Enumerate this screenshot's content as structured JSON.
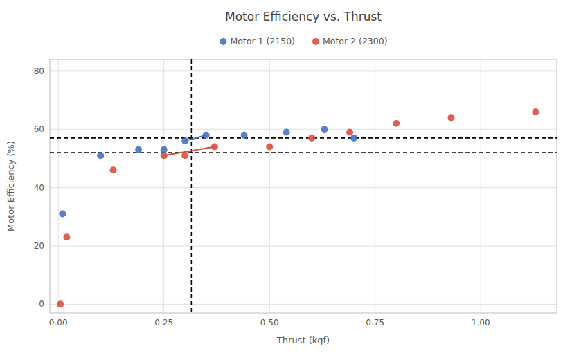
{
  "chart_data": {
    "type": "scatter",
    "title": "Motor Efficiency vs. Thrust",
    "x_label": "Thrust (kgf)",
    "y_label": "Motor Efficiency (%)",
    "series": [
      {
        "name": "Motor 1 (2150)",
        "color": "#4472C4",
        "x": [
          0.01,
          0.1,
          0.19,
          0.25,
          0.3,
          0.35,
          0.44,
          0.54,
          0.63,
          0.7
        ],
        "values": [
          31,
          51,
          53,
          53,
          56,
          58,
          58,
          59,
          60,
          57
        ]
      },
      {
        "name": "Motor 2 (2300)",
        "color": "#D94F3D",
        "x": [
          0.005,
          0.02,
          0.13,
          0.25,
          0.3,
          0.37,
          0.5,
          0.6,
          0.69,
          0.8,
          0.93,
          1.13
        ],
        "values": [
          0,
          23,
          46,
          51,
          51,
          54,
          54,
          57,
          59,
          62,
          64,
          66
        ]
      },
      {
        "type": "line",
        "color": "#4472C4",
        "x": [
          0.3,
          0.35
        ],
        "values": [
          56,
          58
        ]
      },
      {
        "type": "line",
        "color": "#D94F3D",
        "x": [
          0.25,
          0.37
        ],
        "values": [
          51,
          54
        ]
      }
    ],
    "hlines": [
      57,
      52
    ],
    "vlines": [
      0.315
    ],
    "xlim": [
      -0.02,
      1.18
    ],
    "ylim": [
      -3,
      84
    ],
    "xticks": [
      {
        "value": 0,
        "label": "0.00"
      },
      0.25,
      {
        "value": 0.5,
        "label": "0.50"
      },
      0.75,
      {
        "value": 1,
        "label": "1.00"
      }
    ],
    "yticks": [
      0,
      20,
      40,
      60,
      80
    ],
    "grid": true,
    "legend": "top"
  }
}
